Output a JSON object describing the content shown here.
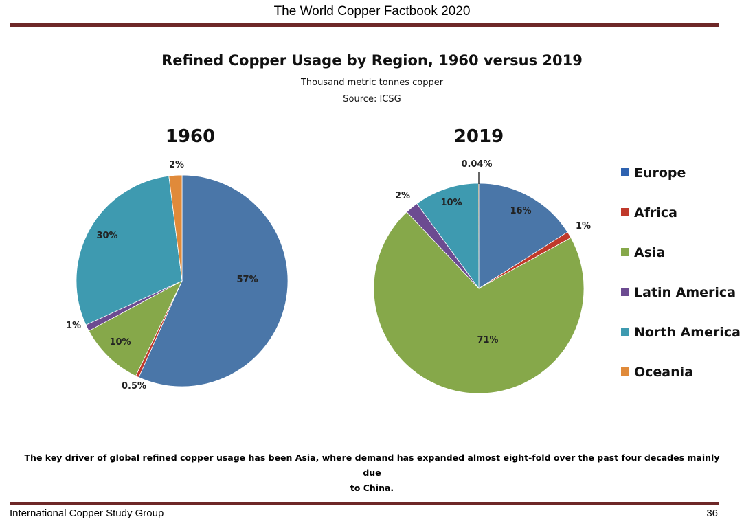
{
  "page": {
    "header": "The World Copper Factbook 2020",
    "footer_left": "International Copper Study Group",
    "footer_right": "36",
    "caption_line1": "The key driver of global refined copper usage has been Asia, where demand has expanded almost eight-fold over the past four decades mainly due",
    "caption_line2": "to China."
  },
  "chart_data": {
    "type": "pie",
    "title": "Refined Copper Usage by Region, 1960 versus 2019",
    "subtitle": "Thousand metric tonnes copper",
    "source": "Source: ICSG",
    "legend_position": "right",
    "categories": [
      "Europe",
      "Africa",
      "Asia",
      "Latin America",
      "North America",
      "Oceania"
    ],
    "colors": [
      "#4a76a8",
      "#c0392b",
      "#86a84a",
      "#6c4b91",
      "#3e9ab0",
      "#e08a3a"
    ],
    "legend_colors": [
      "#2e62b0",
      "#c0392b",
      "#86a84a",
      "#6c4b91",
      "#3e9ab0",
      "#e08a3a"
    ],
    "pies": [
      {
        "title": "1960",
        "values": [
          57,
          0.5,
          10,
          1,
          30,
          2
        ],
        "labels": [
          "57%",
          "0.5%",
          "10%",
          "1%",
          "30%",
          "2%"
        ]
      },
      {
        "title": "2019",
        "values": [
          16,
          1,
          71,
          2,
          10,
          0.04
        ],
        "labels": [
          "16%",
          "1%",
          "71%",
          "2%",
          "10%",
          "0.04%"
        ]
      }
    ]
  }
}
